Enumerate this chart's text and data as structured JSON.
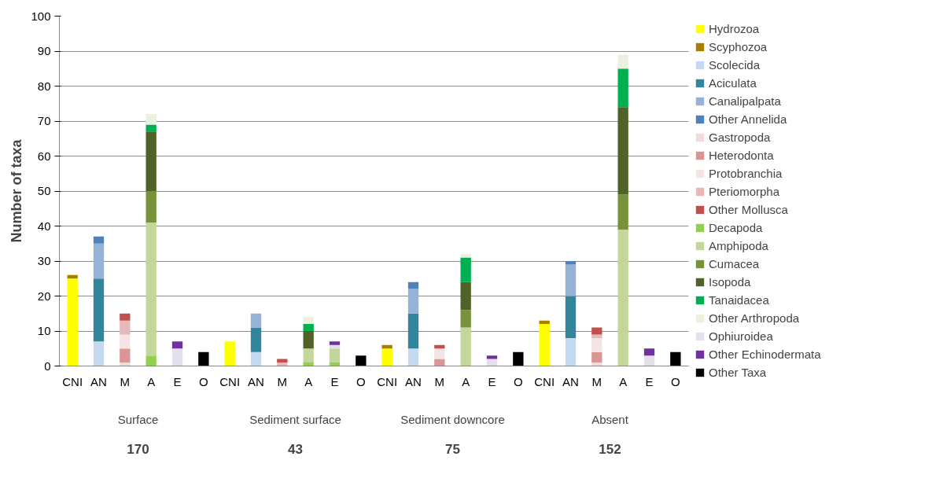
{
  "chart_data": {
    "type": "bar",
    "stacked": true,
    "ylabel": "Number of taxa",
    "categories": [
      "CNI",
      "AN",
      "M",
      "A",
      "E",
      "O",
      "CNI",
      "AN",
      "M",
      "A",
      "E",
      "O",
      "CNI",
      "AN",
      "M",
      "A",
      "E",
      "O",
      "CNI",
      "AN",
      "M",
      "A",
      "E",
      "O"
    ],
    "annotations": [
      "Surface",
      "Sediment surface",
      "Sediment downcore",
      "Absent",
      "170",
      "43",
      "75",
      "152"
    ],
    "ylim": [
      0,
      100
    ],
    "yticks": [
      0,
      10,
      20,
      30,
      40,
      50,
      60,
      70,
      80,
      90,
      100
    ],
    "grid": "y",
    "legend": "right",
    "series": [
      {
        "name": "Hydrozoa",
        "color": "#ffff00",
        "values": [
          25,
          null,
          null,
          null,
          null,
          null,
          7,
          null,
          null,
          null,
          null,
          null,
          5,
          null,
          null,
          null,
          null,
          null,
          12,
          null,
          null,
          null,
          null,
          null
        ]
      },
      {
        "name": "Scyphozoa",
        "color": "#a88000",
        "values": [
          1,
          null,
          null,
          null,
          null,
          null,
          null,
          null,
          null,
          null,
          null,
          null,
          1,
          null,
          null,
          null,
          null,
          null,
          1,
          null,
          null,
          null,
          null,
          null
        ]
      },
      {
        "name": "Scolecida",
        "color": "#c5d9f1",
        "values": [
          null,
          7,
          null,
          null,
          null,
          null,
          null,
          4,
          null,
          null,
          null,
          null,
          null,
          5,
          null,
          null,
          null,
          null,
          null,
          8,
          null,
          null,
          null,
          null
        ]
      },
      {
        "name": "Aciculata",
        "color": "#31859c",
        "values": [
          null,
          18,
          null,
          null,
          null,
          null,
          null,
          7,
          null,
          null,
          null,
          null,
          null,
          10,
          null,
          null,
          null,
          null,
          null,
          12,
          null,
          null,
          null,
          null
        ]
      },
      {
        "name": "Canalipalpata",
        "color": "#95b3d7",
        "values": [
          null,
          10,
          null,
          null,
          null,
          null,
          null,
          4,
          null,
          null,
          null,
          null,
          null,
          7,
          null,
          null,
          null,
          null,
          null,
          9,
          null,
          null,
          null,
          null
        ]
      },
      {
        "name": "Other Annelida",
        "color": "#4f81bd",
        "values": [
          null,
          2,
          null,
          null,
          null,
          null,
          null,
          null,
          null,
          null,
          null,
          null,
          null,
          2,
          null,
          null,
          null,
          null,
          null,
          1,
          null,
          null,
          null,
          null
        ]
      },
      {
        "name": "Gastropoda",
        "color": "#f2dcdb",
        "values": [
          null,
          null,
          1,
          null,
          null,
          null,
          null,
          null,
          null,
          null,
          null,
          null,
          null,
          null,
          null,
          null,
          null,
          null,
          null,
          null,
          1,
          null,
          null,
          null
        ]
      },
      {
        "name": "Heterodonta",
        "color": "#da9694",
        "values": [
          null,
          null,
          4,
          null,
          null,
          null,
          null,
          null,
          null,
          null,
          null,
          null,
          null,
          null,
          2,
          null,
          null,
          null,
          null,
          null,
          3,
          null,
          null,
          null
        ]
      },
      {
        "name": "Protobranchia",
        "color": "#f5e4e4",
        "values": [
          null,
          null,
          4,
          null,
          null,
          null,
          null,
          null,
          null,
          null,
          null,
          null,
          null,
          null,
          3,
          null,
          null,
          null,
          null,
          null,
          4,
          null,
          null,
          null
        ]
      },
      {
        "name": "Pteriomorpha",
        "color": "#e6b8b7",
        "values": [
          null,
          null,
          4,
          null,
          null,
          null,
          null,
          null,
          1,
          null,
          null,
          null,
          null,
          null,
          null,
          null,
          null,
          null,
          null,
          null,
          1,
          null,
          null,
          null
        ]
      },
      {
        "name": "Other Mollusca",
        "color": "#c0504d",
        "values": [
          null,
          null,
          2,
          null,
          null,
          null,
          null,
          null,
          1,
          null,
          null,
          null,
          null,
          null,
          1,
          null,
          null,
          null,
          null,
          null,
          2,
          null,
          null,
          null
        ]
      },
      {
        "name": "Decapoda",
        "color": "#92d050",
        "values": [
          null,
          null,
          null,
          3,
          null,
          null,
          null,
          null,
          null,
          1,
          1,
          null,
          null,
          null,
          null,
          null,
          null,
          null,
          null,
          null,
          null,
          null,
          null,
          null
        ]
      },
      {
        "name": "Amphipoda",
        "color": "#c4d79b",
        "values": [
          null,
          null,
          null,
          38,
          null,
          null,
          null,
          null,
          null,
          4,
          4,
          null,
          null,
          null,
          null,
          11,
          null,
          null,
          null,
          null,
          null,
          39,
          null,
          null
        ]
      },
      {
        "name": "Cumacea",
        "color": "#76933c",
        "values": [
          null,
          null,
          null,
          9,
          null,
          null,
          null,
          null,
          null,
          null,
          null,
          null,
          null,
          null,
          null,
          5,
          null,
          null,
          null,
          null,
          null,
          10,
          null,
          null
        ]
      },
      {
        "name": "Isopoda",
        "color": "#4f6228",
        "values": [
          null,
          null,
          null,
          17,
          null,
          null,
          null,
          null,
          null,
          5,
          null,
          null,
          null,
          null,
          null,
          8,
          null,
          null,
          null,
          null,
          null,
          25,
          null,
          null
        ]
      },
      {
        "name": "Tanaidacea",
        "color": "#00b050",
        "values": [
          null,
          null,
          null,
          2,
          null,
          null,
          null,
          null,
          null,
          2,
          null,
          null,
          null,
          null,
          null,
          7,
          null,
          null,
          null,
          null,
          null,
          11,
          null,
          null
        ]
      },
      {
        "name": "Other Arthropoda",
        "color": "#ebf1de",
        "values": [
          null,
          null,
          null,
          3,
          null,
          null,
          null,
          null,
          null,
          2,
          null,
          null,
          null,
          null,
          null,
          1,
          null,
          null,
          null,
          null,
          null,
          4,
          null,
          null
        ]
      },
      {
        "name": "Ophiuroidea",
        "color": "#e4dfec",
        "values": [
          null,
          null,
          null,
          null,
          5,
          null,
          null,
          null,
          null,
          null,
          1,
          null,
          null,
          null,
          null,
          null,
          2,
          null,
          null,
          null,
          null,
          null,
          3,
          null
        ]
      },
      {
        "name": "Other Echinodermata",
        "color": "#7030a0",
        "values": [
          null,
          null,
          null,
          null,
          2,
          null,
          null,
          null,
          null,
          null,
          1,
          null,
          null,
          null,
          null,
          null,
          1,
          null,
          null,
          null,
          null,
          null,
          2,
          null
        ]
      },
      {
        "name": "Other Taxa",
        "color": "#000000",
        "values": [
          null,
          null,
          null,
          null,
          null,
          4,
          null,
          null,
          null,
          null,
          null,
          3,
          null,
          null,
          null,
          null,
          null,
          4,
          null,
          null,
          null,
          null,
          null,
          4
        ]
      }
    ]
  }
}
